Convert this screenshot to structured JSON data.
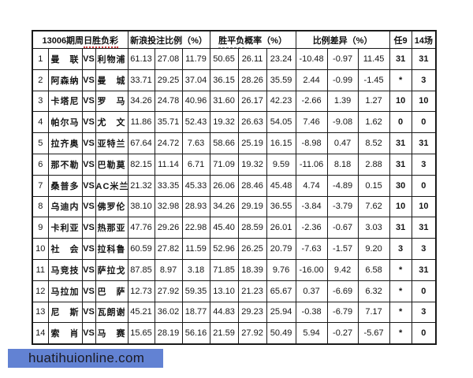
{
  "table": {
    "title_main": "13006期周",
    "title_underlined": "日胜负彩",
    "headers": {
      "bet": "新浪投注比例（%）",
      "prob_underlined": "胜平负",
      "prob_rest": "概率（%）",
      "diff": "比例差异（%）",
      "ren9": "任9",
      "c14": "14场"
    },
    "rows": [
      {
        "no": "1",
        "home": "曼　联",
        "vs": "VS",
        "away": "利物浦",
        "bet": [
          "61.13",
          "27.08",
          "11.79"
        ],
        "prob": [
          "50.65",
          "26.11",
          "23.24"
        ],
        "diff": [
          "-10.48",
          "-0.97",
          "11.45"
        ],
        "ren9": "31",
        "c14": "31"
      },
      {
        "no": "2",
        "home": "阿森纳",
        "vs": "VS",
        "away": "曼　城",
        "bet": [
          "33.71",
          "29.25",
          "37.04"
        ],
        "prob": [
          "36.15",
          "28.26",
          "35.59"
        ],
        "diff": [
          "2.44",
          "-0.99",
          "-1.45"
        ],
        "ren9": "*",
        "c14": "3"
      },
      {
        "no": "3",
        "home": "卡塔尼",
        "vs": "VS",
        "away": "罗　马",
        "bet": [
          "34.26",
          "24.78",
          "40.96"
        ],
        "prob": [
          "31.60",
          "26.17",
          "42.23"
        ],
        "diff": [
          "-2.66",
          "1.39",
          "1.27"
        ],
        "ren9": "10",
        "c14": "10"
      },
      {
        "no": "4",
        "home": "帕尔马",
        "vs": "VS",
        "away": "尤　文",
        "bet": [
          "11.86",
          "35.71",
          "52.43"
        ],
        "prob": [
          "19.32",
          "26.63",
          "54.05"
        ],
        "diff": [
          "7.46",
          "-9.08",
          "1.62"
        ],
        "ren9": "0",
        "c14": "0"
      },
      {
        "no": "5",
        "home": "拉齐奥",
        "vs": "VS",
        "away": "亚特兰",
        "bet": [
          "67.64",
          "24.72",
          "7.63"
        ],
        "prob": [
          "58.66",
          "25.19",
          "16.15"
        ],
        "diff": [
          "-8.98",
          "0.47",
          "8.52"
        ],
        "ren9": "31",
        "c14": "31"
      },
      {
        "no": "6",
        "home": "那不勒",
        "vs": "VS",
        "away": "巴勒莫",
        "bet": [
          "82.15",
          "11.14",
          "6.71"
        ],
        "prob": [
          "71.09",
          "19.32",
          "9.59"
        ],
        "diff": [
          "-11.06",
          "8.18",
          "2.88"
        ],
        "ren9": "31",
        "c14": "3"
      },
      {
        "no": "7",
        "home": "桑普多",
        "vs": "VS",
        "away": "AC米兰",
        "bet": [
          "21.32",
          "33.35",
          "45.33"
        ],
        "prob": [
          "26.06",
          "28.46",
          "45.48"
        ],
        "diff": [
          "4.74",
          "-4.89",
          "0.15"
        ],
        "ren9": "30",
        "c14": "0"
      },
      {
        "no": "8",
        "home": "乌迪内",
        "vs": "VS",
        "away": "佛罗伦",
        "bet": [
          "38.10",
          "32.98",
          "28.93"
        ],
        "prob": [
          "34.26",
          "29.19",
          "36.55"
        ],
        "diff": [
          "-3.84",
          "-3.79",
          "7.62"
        ],
        "ren9": "10",
        "c14": "10"
      },
      {
        "no": "9",
        "home": "卡利亚",
        "vs": "VS",
        "away": "热那亚",
        "bet": [
          "47.76",
          "29.26",
          "22.98"
        ],
        "prob": [
          "45.40",
          "28.59",
          "26.01"
        ],
        "diff": [
          "-2.36",
          "-0.67",
          "3.03"
        ],
        "ren9": "31",
        "c14": "31"
      },
      {
        "no": "10",
        "home": "社　会",
        "vs": "VS",
        "away": "拉科鲁",
        "bet": [
          "60.59",
          "27.82",
          "11.59"
        ],
        "prob": [
          "52.96",
          "26.25",
          "20.79"
        ],
        "diff": [
          "-7.63",
          "-1.57",
          "9.20"
        ],
        "ren9": "3",
        "c14": "3"
      },
      {
        "no": "11",
        "home": "马竞技",
        "vs": "VS",
        "away": "萨拉戈",
        "bet": [
          "87.85",
          "8.97",
          "3.18"
        ],
        "prob": [
          "71.85",
          "18.39",
          "9.76"
        ],
        "diff": [
          "-16.00",
          "9.42",
          "6.58"
        ],
        "ren9": "*",
        "c14": "31"
      },
      {
        "no": "12",
        "home": "马拉加",
        "vs": "VS",
        "away": "巴　萨",
        "bet": [
          "12.73",
          "27.92",
          "59.35"
        ],
        "prob": [
          "13.10",
          "21.23",
          "65.67"
        ],
        "diff": [
          "0.37",
          "-6.69",
          "6.32"
        ],
        "ren9": "*",
        "c14": "0"
      },
      {
        "no": "13",
        "home": "尼　斯",
        "vs": "VS",
        "away": "瓦朗谢",
        "bet": [
          "45.21",
          "36.02",
          "18.77"
        ],
        "prob": [
          "44.83",
          "29.23",
          "25.94"
        ],
        "diff": [
          "-0.38",
          "-6.79",
          "7.17"
        ],
        "ren9": "*",
        "c14": "3"
      },
      {
        "no": "14",
        "home": "索　肖",
        "vs": "VS",
        "away": "马　赛",
        "bet": [
          "15.65",
          "28.19",
          "56.16"
        ],
        "prob": [
          "21.59",
          "27.92",
          "50.49"
        ],
        "diff": [
          "5.94",
          "-0.27",
          "-5.67"
        ],
        "ren9": "*",
        "c14": "0"
      }
    ]
  },
  "watermark": {
    "text": "huatihuionline.com"
  },
  "colors": {
    "negative_value": "#a34a4a",
    "watermark_bg": "#6282d3",
    "title_underline": "#cc4444",
    "border": "#1a1a1a"
  }
}
